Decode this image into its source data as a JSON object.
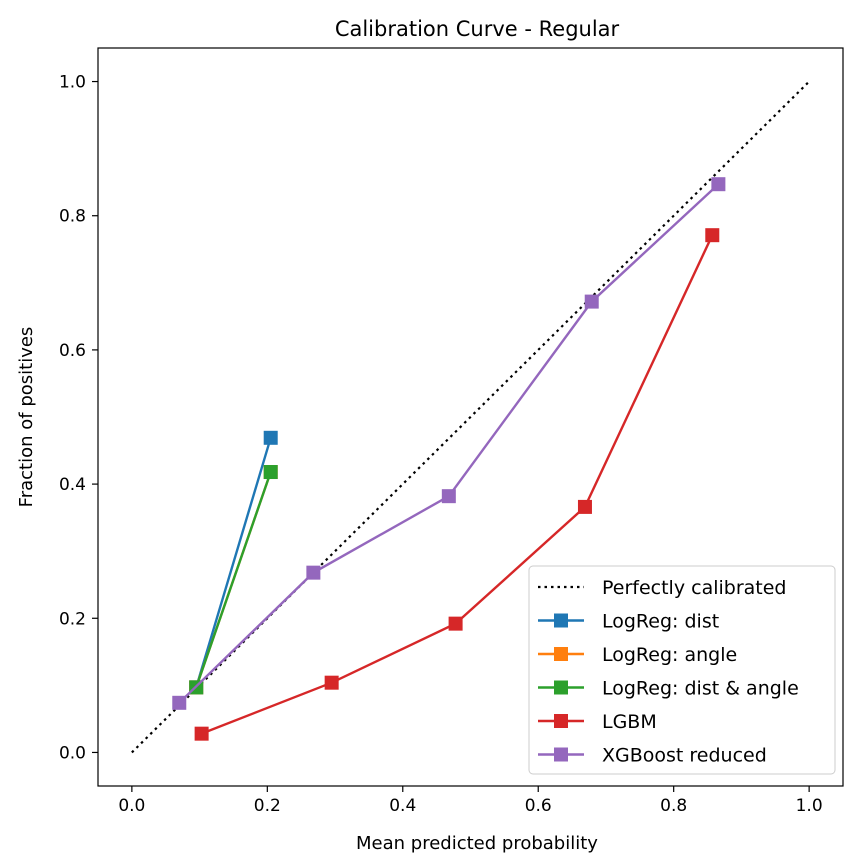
{
  "chart_data": {
    "type": "line",
    "title": "Calibration Curve - Regular",
    "xlabel": "Mean predicted probability",
    "ylabel": "Fraction of positives",
    "xlim": [
      -0.05,
      1.05
    ],
    "ylim": [
      -0.05,
      1.05
    ],
    "xticks": [
      "0.0",
      "0.2",
      "0.4",
      "0.6",
      "0.8",
      "1.0"
    ],
    "yticks": [
      "0.0",
      "0.2",
      "0.4",
      "0.6",
      "0.8",
      "1.0"
    ],
    "grid": false,
    "legend_position": "lower-right",
    "reference": {
      "name": "Perfectly calibrated",
      "x": [
        0,
        1
      ],
      "y": [
        0,
        1
      ],
      "color": "#000000",
      "style": "dotted"
    },
    "series": [
      {
        "name": "LogReg: dist",
        "color": "#1f77b4",
        "x": [
          0.095,
          0.205
        ],
        "y": [
          0.097,
          0.469
        ]
      },
      {
        "name": "LogReg: angle",
        "color": "#ff7f0e",
        "x": [
          0.095,
          0.205
        ],
        "y": [
          0.097,
          0.418
        ]
      },
      {
        "name": "LogReg: dist & angle",
        "color": "#2ca02c",
        "x": [
          0.095,
          0.205
        ],
        "y": [
          0.097,
          0.418
        ]
      },
      {
        "name": "LGBM",
        "color": "#d62728",
        "x": [
          0.103,
          0.295,
          0.478,
          0.669,
          0.857
        ],
        "y": [
          0.028,
          0.104,
          0.192,
          0.366,
          0.771
        ]
      },
      {
        "name": "XGBoost reduced",
        "color": "#9467bd",
        "x": [
          0.07,
          0.268,
          0.468,
          0.679,
          0.866
        ],
        "y": [
          0.074,
          0.268,
          0.382,
          0.672,
          0.847
        ]
      }
    ]
  }
}
